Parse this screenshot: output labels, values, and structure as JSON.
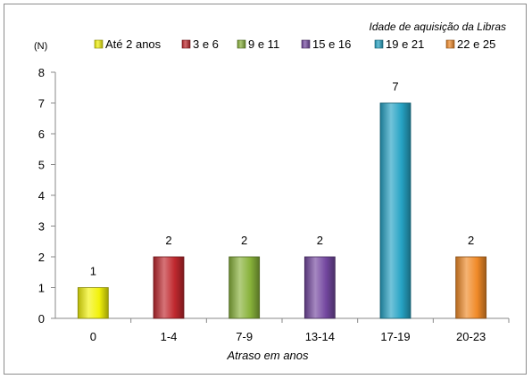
{
  "chart_data": {
    "type": "bar",
    "title": "Idade de aquisição da Libras",
    "ylabel": "(N)",
    "xlabel": "Atraso em anos",
    "categories": [
      "0",
      "1-4",
      "7-9",
      "13-14",
      "17-19",
      "20-23"
    ],
    "values": [
      1,
      2,
      2,
      2,
      7,
      2
    ],
    "data_labels": [
      "1",
      "2",
      "2",
      "2",
      "7",
      "2"
    ],
    "yticks": [
      "0",
      "1",
      "2",
      "3",
      "4",
      "5",
      "6",
      "7",
      "8"
    ],
    "ylim": [
      0,
      8
    ],
    "grid": false,
    "legend_placement": "top",
    "legend": [
      {
        "name": "Até 2 anos",
        "color": "#f2f20a"
      },
      {
        "name": "3 e 6",
        "color": "#c0282e"
      },
      {
        "name": "9 e 11",
        "color": "#88b23a"
      },
      {
        "name": "15 e 16",
        "color": "#7448a0"
      },
      {
        "name": "19 e 21",
        "color": "#26a3c4"
      },
      {
        "name": "22 e 25",
        "color": "#f08a28"
      }
    ],
    "bar_colors": [
      "#f2f20a",
      "#c0282e",
      "#88b23a",
      "#7448a0",
      "#26a3c4",
      "#f08a28"
    ]
  }
}
